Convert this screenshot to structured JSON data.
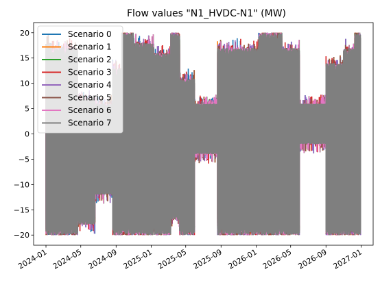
{
  "chart_data": {
    "type": "line",
    "title": "Flow values \"N1_HVDC-N1\" (MW)",
    "xlabel": "",
    "ylabel": "",
    "xlim": [
      "2023-11-19",
      "2027-02-12"
    ],
    "ylim": [
      -22,
      22
    ],
    "x_ticks": [
      "2024-01",
      "2024-05",
      "2024-09",
      "2025-01",
      "2025-05",
      "2025-09",
      "2026-01",
      "2026-05",
      "2026-09",
      "2027-01"
    ],
    "y_ticks": [
      -20,
      -15,
      -10,
      -5,
      0,
      5,
      10,
      15,
      20
    ],
    "grid": false,
    "legend_position": "upper-left",
    "bands": [
      {
        "start": "2024-01-01",
        "end": "2024-01-20",
        "lo": -20,
        "hi": 18
      },
      {
        "start": "2024-01-20",
        "end": "2024-04-20",
        "lo": -20,
        "hi": 17
      },
      {
        "start": "2024-04-20",
        "end": "2024-06-20",
        "lo": -18,
        "hi": 7
      },
      {
        "start": "2024-06-20",
        "end": "2024-08-20",
        "lo": -12,
        "hi": 6
      },
      {
        "start": "2024-08-20",
        "end": "2024-09-20",
        "lo": -20,
        "hi": 13
      },
      {
        "start": "2024-09-20",
        "end": "2024-11-01",
        "lo": -20,
        "hi": 20
      },
      {
        "start": "2024-11-01",
        "end": "2025-01-10",
        "lo": -20,
        "hi": 18
      },
      {
        "start": "2025-01-10",
        "end": "2025-03-10",
        "lo": -20,
        "hi": 16
      },
      {
        "start": "2025-03-10",
        "end": "2025-04-10",
        "lo": -17,
        "hi": 20
      },
      {
        "start": "2025-04-10",
        "end": "2025-06-01",
        "lo": -20,
        "hi": 11
      },
      {
        "start": "2025-06-01",
        "end": "2025-08-20",
        "lo": -4,
        "hi": 6
      },
      {
        "start": "2025-08-20",
        "end": "2025-10-20",
        "lo": -20,
        "hi": 17
      },
      {
        "start": "2025-10-20",
        "end": "2026-01-10",
        "lo": -20,
        "hi": 17
      },
      {
        "start": "2026-01-10",
        "end": "2026-04-01",
        "lo": -20,
        "hi": 20
      },
      {
        "start": "2026-04-01",
        "end": "2026-06-01",
        "lo": -20,
        "hi": 17
      },
      {
        "start": "2026-06-01",
        "end": "2026-09-01",
        "lo": -2,
        "hi": 6
      },
      {
        "start": "2026-09-01",
        "end": "2026-11-01",
        "lo": -20,
        "hi": 14
      },
      {
        "start": "2026-11-01",
        "end": "2026-12-10",
        "lo": -20,
        "hi": 17
      },
      {
        "start": "2026-12-10",
        "end": "2026-12-31",
        "lo": -20,
        "hi": 20
      }
    ],
    "series": [
      {
        "name": "Scenario 0",
        "color": "#1f77b4"
      },
      {
        "name": "Scenario 1",
        "color": "#ff7f0e"
      },
      {
        "name": "Scenario 2",
        "color": "#2ca02c"
      },
      {
        "name": "Scenario 3",
        "color": "#d62728"
      },
      {
        "name": "Scenario 4",
        "color": "#9467bd"
      },
      {
        "name": "Scenario 5",
        "color": "#8c564b"
      },
      {
        "name": "Scenario 6",
        "color": "#e377c2"
      },
      {
        "name": "Scenario 7",
        "color": "#7f7f7f"
      }
    ]
  }
}
